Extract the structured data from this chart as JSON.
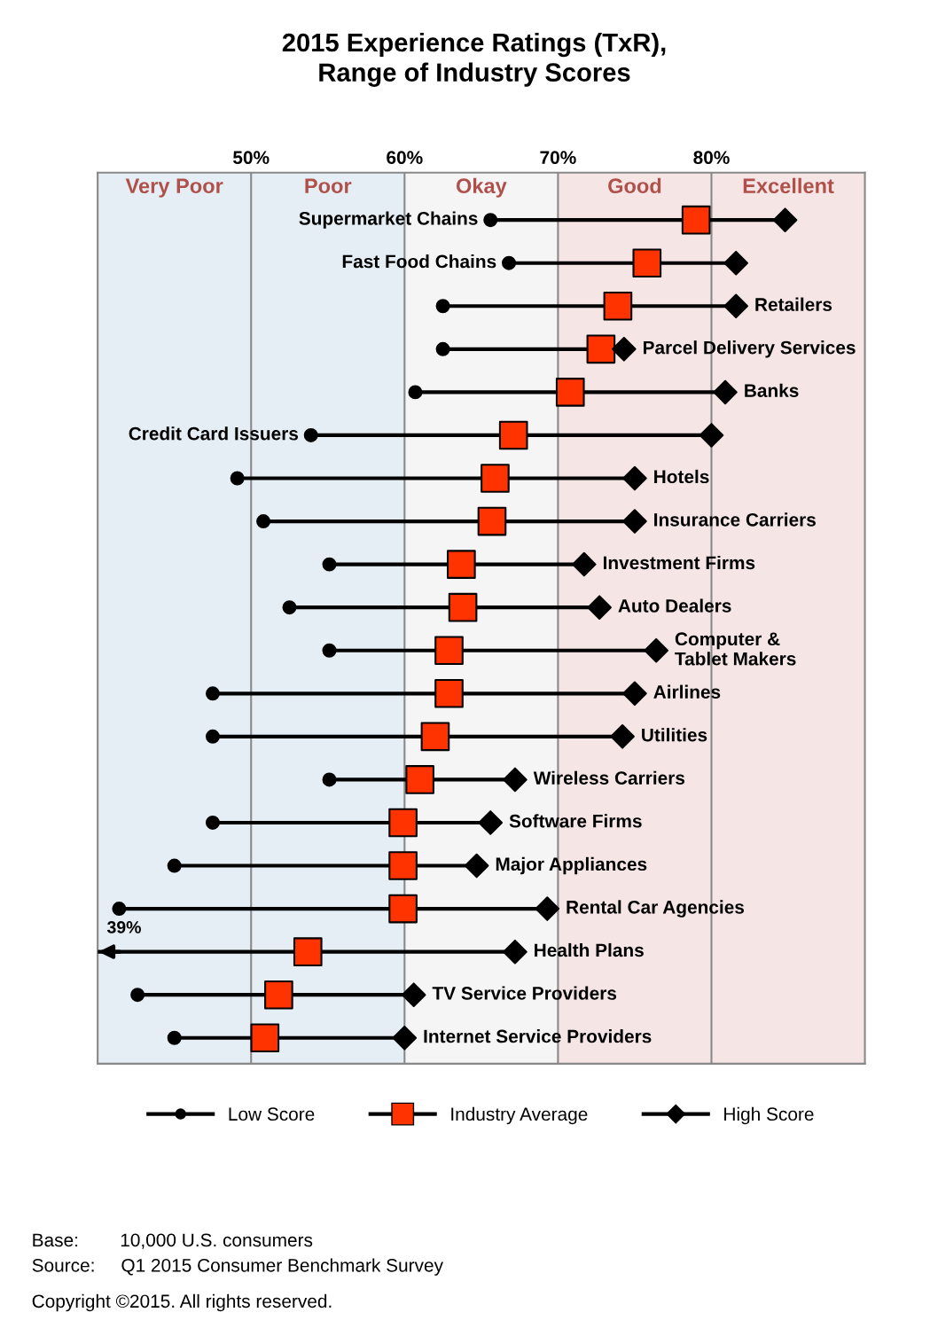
{
  "chart_data": {
    "type": "scatter",
    "orientation": "horizontal",
    "title": "2015 Experience Ratings (TxR),\nRange of Industry Scores",
    "categories": [
      "Supermarket Chains",
      "Fast Food Chains",
      "Retailers",
      "Parcel Delivery Services",
      "Banks",
      "Credit Card Issuers",
      "Hotels",
      "Insurance Carriers",
      "Investment Firms",
      "Auto Dealers",
      "Computer &\nTablet Makers",
      "Airlines",
      "Utilities",
      "Wireless Carriers",
      "Software Firms",
      "Major Appliances",
      "Rental Car Agencies",
      "Health Plans",
      "TV Service Providers",
      "Internet Service Providers"
    ],
    "series": [
      {
        "name": "Low Score",
        "color": "#000000",
        "marker": "circle",
        "values": [
          65.6,
          66.8,
          62.5,
          62.5,
          60.7,
          53.9,
          49.1,
          50.8,
          55.1,
          52.5,
          55.1,
          47.5,
          47.5,
          55.1,
          47.5,
          45.0,
          41.4,
          null,
          42.6,
          45.0
        ]
      },
      {
        "name": "Industry Average",
        "color": "#ff3300",
        "marker": "square",
        "values": [
          79.0,
          75.8,
          73.9,
          72.8,
          70.8,
          67.1,
          65.9,
          65.7,
          63.7,
          63.8,
          62.9,
          62.9,
          62.0,
          61.0,
          59.9,
          59.9,
          59.9,
          53.7,
          51.8,
          50.9
        ]
      },
      {
        "name": "High Score",
        "color": "#000000",
        "marker": "diamond",
        "values": [
          84.8,
          81.6,
          81.6,
          74.3,
          80.9,
          80.0,
          75.0,
          75.0,
          71.7,
          72.7,
          76.4,
          75.0,
          74.2,
          67.2,
          65.6,
          64.7,
          69.3,
          67.2,
          60.6,
          60.0
        ]
      }
    ],
    "xlim": [
      40,
      90
    ],
    "xticks": [
      {
        "value": 50,
        "label": "50%"
      },
      {
        "value": 60,
        "label": "60%"
      },
      {
        "value": 70,
        "label": "70%"
      },
      {
        "value": 80,
        "label": "80%"
      }
    ],
    "bands": [
      {
        "axis": "x",
        "from": 40,
        "to": 50,
        "label": "Very Poor",
        "color": "#e5eef5"
      },
      {
        "axis": "x",
        "from": 50,
        "to": 60,
        "label": "Poor",
        "color": "#e5eef5"
      },
      {
        "axis": "x",
        "from": 60,
        "to": 70,
        "label": "Okay",
        "color": "#f5f5f5"
      },
      {
        "axis": "x",
        "from": 70,
        "to": 80,
        "label": "Good",
        "color": "#f5e5e5"
      },
      {
        "axis": "x",
        "from": 80,
        "to": 90,
        "label": "Excellent",
        "color": "#f5e5e5"
      }
    ],
    "grid": "x",
    "legend": "bottom",
    "annotations": [
      {
        "text": "39%",
        "x": 40,
        "y": "Health Plans"
      },
      "Base:        10,000 U.S. consumers",
      "Source:     Q1 2015 Consumer Benchmark Survey",
      "Copyright ©2015. All rights reserved."
    ]
  }
}
